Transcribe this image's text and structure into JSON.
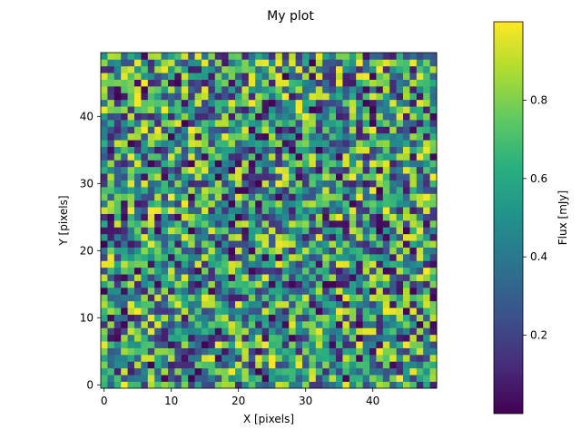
{
  "chart_data": {
    "type": "heatmap",
    "title": "My plot",
    "xlabel": "X [pixels]",
    "ylabel": "Y [pixels]",
    "colorbar_label": "Flux [mJy]",
    "colormap": "viridis",
    "grid_size": [
      50,
      50
    ],
    "xlim": [
      -0.5,
      49.5
    ],
    "ylim": [
      -0.5,
      49.5
    ],
    "xticks": [
      0,
      10,
      20,
      30,
      40
    ],
    "yticks": [
      0,
      10,
      20,
      30,
      40
    ],
    "colorbar_range": [
      0.0,
      1.0
    ],
    "colorbar_ticks": [
      0.2,
      0.4,
      0.6,
      0.8
    ],
    "colorbar_tick_labels": [
      "0.2",
      "0.4",
      "0.6",
      "0.8"
    ],
    "value_distribution": "uniform random in [0, 1]",
    "grid": false
  }
}
